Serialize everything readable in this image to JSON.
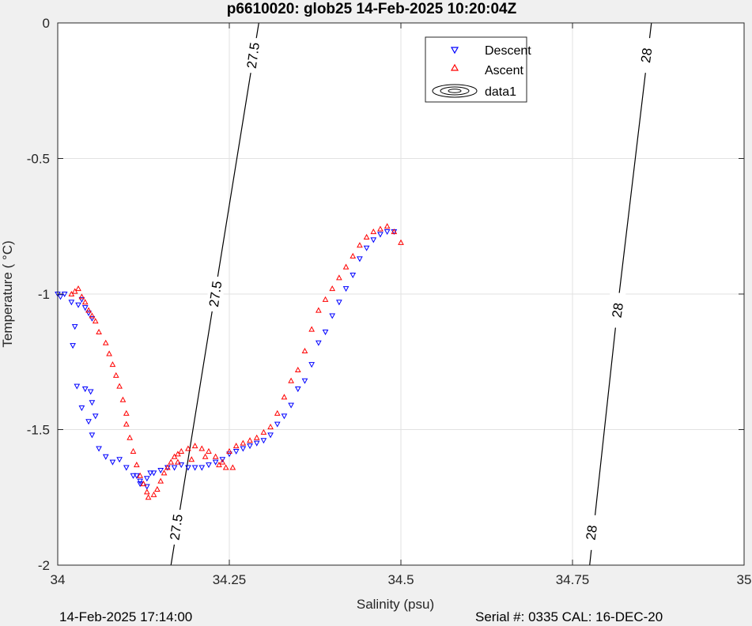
{
  "chart_data": {
    "type": "scatter",
    "title": "p6610020: glob25 14-Feb-2025 10:20:04Z",
    "xlabel": "Salinity (psu)",
    "ylabel": "Temperature (   °C)",
    "xlim": [
      34,
      35
    ],
    "ylim": [
      -2,
      0
    ],
    "xticks": [
      34,
      34.25,
      34.5,
      34.75,
      35
    ],
    "xtick_labels": [
      "34",
      "34.25",
      "34.5",
      "34.75",
      "35"
    ],
    "yticks": [
      0,
      -0.5,
      -1,
      -1.5,
      -2
    ],
    "ytick_labels": [
      "0",
      "-0.5",
      "-1",
      "-1.5",
      "-2"
    ],
    "grid": true,
    "legend_position": "top-right",
    "legend": [
      "Descent",
      "Ascent",
      "data1"
    ],
    "colors": {
      "descent": "#0000ff",
      "ascent": "#ff0000",
      "contour": "#000000",
      "grid": "#e2e2e2",
      "plot_bg": "#ffffff",
      "figure_bg": "#f0f0f0"
    },
    "series": [
      {
        "name": "Descent",
        "marker": "triangle-down",
        "points": [
          [
            34.0,
            -1.0
          ],
          [
            34.004,
            -1.01
          ],
          [
            34.01,
            -1.0
          ],
          [
            34.02,
            -1.03
          ],
          [
            34.03,
            -1.04
          ],
          [
            34.04,
            -1.05
          ],
          [
            34.045,
            -1.07
          ],
          [
            34.05,
            -1.09
          ],
          [
            34.035,
            -1.02
          ],
          [
            34.022,
            -1.19
          ],
          [
            34.025,
            -1.12
          ],
          [
            34.028,
            -1.34
          ],
          [
            34.035,
            -1.42
          ],
          [
            34.04,
            -1.35
          ],
          [
            34.048,
            -1.36
          ],
          [
            34.05,
            -1.4
          ],
          [
            34.045,
            -1.47
          ],
          [
            34.055,
            -1.45
          ],
          [
            34.05,
            -1.52
          ],
          [
            34.06,
            -1.57
          ],
          [
            34.07,
            -1.6
          ],
          [
            34.08,
            -1.62
          ],
          [
            34.09,
            -1.61
          ],
          [
            34.1,
            -1.64
          ],
          [
            34.11,
            -1.67
          ],
          [
            34.12,
            -1.69
          ],
          [
            34.13,
            -1.68
          ],
          [
            34.14,
            -1.66
          ],
          [
            34.15,
            -1.65
          ],
          [
            34.16,
            -1.64
          ],
          [
            34.17,
            -1.64
          ],
          [
            34.18,
            -1.63
          ],
          [
            34.19,
            -1.64
          ],
          [
            34.2,
            -1.64
          ],
          [
            34.21,
            -1.64
          ],
          [
            34.22,
            -1.63
          ],
          [
            34.23,
            -1.62
          ],
          [
            34.24,
            -1.61
          ],
          [
            34.25,
            -1.59
          ],
          [
            34.26,
            -1.58
          ],
          [
            34.27,
            -1.57
          ],
          [
            34.28,
            -1.56
          ],
          [
            34.29,
            -1.55
          ],
          [
            34.3,
            -1.54
          ],
          [
            34.31,
            -1.52
          ],
          [
            34.32,
            -1.48
          ],
          [
            34.33,
            -1.45
          ],
          [
            34.34,
            -1.41
          ],
          [
            34.35,
            -1.35
          ],
          [
            34.36,
            -1.32
          ],
          [
            34.37,
            -1.26
          ],
          [
            34.38,
            -1.18
          ],
          [
            34.39,
            -1.14
          ],
          [
            34.4,
            -1.08
          ],
          [
            34.41,
            -1.03
          ],
          [
            34.42,
            -0.98
          ],
          [
            34.43,
            -0.93
          ],
          [
            34.44,
            -0.87
          ],
          [
            34.45,
            -0.83
          ],
          [
            34.46,
            -0.8
          ],
          [
            34.47,
            -0.78
          ],
          [
            34.48,
            -0.77
          ],
          [
            34.49,
            -0.77
          ],
          [
            34.12,
            -1.7
          ],
          [
            34.115,
            -1.67
          ],
          [
            34.13,
            -1.71
          ],
          [
            34.135,
            -1.66
          ]
        ]
      },
      {
        "name": "Ascent",
        "marker": "triangle-up",
        "points": [
          [
            34.02,
            -1.0
          ],
          [
            34.025,
            -0.99
          ],
          [
            34.03,
            -0.98
          ],
          [
            34.035,
            -1.01
          ],
          [
            34.04,
            -1.03
          ],
          [
            34.045,
            -1.06
          ],
          [
            34.05,
            -1.08
          ],
          [
            34.055,
            -1.1
          ],
          [
            34.06,
            -1.14
          ],
          [
            34.07,
            -1.18
          ],
          [
            34.075,
            -1.22
          ],
          [
            34.08,
            -1.26
          ],
          [
            34.085,
            -1.3
          ],
          [
            34.09,
            -1.34
          ],
          [
            34.095,
            -1.39
          ],
          [
            34.1,
            -1.44
          ],
          [
            34.1,
            -1.48
          ],
          [
            34.105,
            -1.53
          ],
          [
            34.11,
            -1.58
          ],
          [
            34.115,
            -1.63
          ],
          [
            34.12,
            -1.67
          ],
          [
            34.125,
            -1.7
          ],
          [
            34.13,
            -1.73
          ],
          [
            34.132,
            -1.75
          ],
          [
            34.14,
            -1.74
          ],
          [
            34.145,
            -1.72
          ],
          [
            34.15,
            -1.69
          ],
          [
            34.155,
            -1.66
          ],
          [
            34.16,
            -1.64
          ],
          [
            34.165,
            -1.62
          ],
          [
            34.17,
            -1.6
          ],
          [
            34.175,
            -1.59
          ],
          [
            34.18,
            -1.58
          ],
          [
            34.19,
            -1.57
          ],
          [
            34.2,
            -1.56
          ],
          [
            34.21,
            -1.57
          ],
          [
            34.22,
            -1.58
          ],
          [
            34.23,
            -1.6
          ],
          [
            34.24,
            -1.62
          ],
          [
            34.245,
            -1.64
          ],
          [
            34.25,
            -1.58
          ],
          [
            34.26,
            -1.56
          ],
          [
            34.27,
            -1.55
          ],
          [
            34.28,
            -1.54
          ],
          [
            34.29,
            -1.53
          ],
          [
            34.3,
            -1.51
          ],
          [
            34.31,
            -1.49
          ],
          [
            34.32,
            -1.44
          ],
          [
            34.33,
            -1.38
          ],
          [
            34.34,
            -1.32
          ],
          [
            34.35,
            -1.28
          ],
          [
            34.36,
            -1.21
          ],
          [
            34.37,
            -1.13
          ],
          [
            34.38,
            -1.06
          ],
          [
            34.39,
            -1.02
          ],
          [
            34.4,
            -0.98
          ],
          [
            34.41,
            -0.94
          ],
          [
            34.42,
            -0.9
          ],
          [
            34.43,
            -0.86
          ],
          [
            34.44,
            -0.82
          ],
          [
            34.45,
            -0.79
          ],
          [
            34.46,
            -0.77
          ],
          [
            34.47,
            -0.76
          ],
          [
            34.48,
            -0.75
          ],
          [
            34.49,
            -0.77
          ],
          [
            34.5,
            -0.81
          ],
          [
            34.255,
            -1.64
          ],
          [
            34.235,
            -1.63
          ],
          [
            34.215,
            -1.6
          ],
          [
            34.195,
            -1.61
          ],
          [
            34.175,
            -1.62
          ]
        ]
      }
    ],
    "contours": [
      {
        "level": "27.5",
        "points": [
          [
            34.165,
            -2.0
          ],
          [
            34.229,
            -1.0
          ],
          [
            34.293,
            0.0
          ]
        ]
      },
      {
        "level": "28",
        "points": [
          [
            34.775,
            -2.0
          ],
          [
            34.818,
            -1.0
          ],
          [
            34.865,
            0.0
          ]
        ]
      }
    ],
    "contour_labels": [
      {
        "text": "27.5",
        "x": 34.285,
        "y": -0.12
      },
      {
        "text": "27.5",
        "x": 34.23,
        "y": -1.0
      },
      {
        "text": "27.5",
        "x": 34.173,
        "y": -1.86
      },
      {
        "text": "28",
        "x": 34.858,
        "y": -0.12
      },
      {
        "text": "28",
        "x": 34.816,
        "y": -1.06
      },
      {
        "text": "28",
        "x": 34.778,
        "y": -1.88
      }
    ]
  },
  "footer": {
    "left": "14-Feb-2025 17:14:00",
    "right": "Serial #: 0335  CAL: 16-DEC-20"
  }
}
